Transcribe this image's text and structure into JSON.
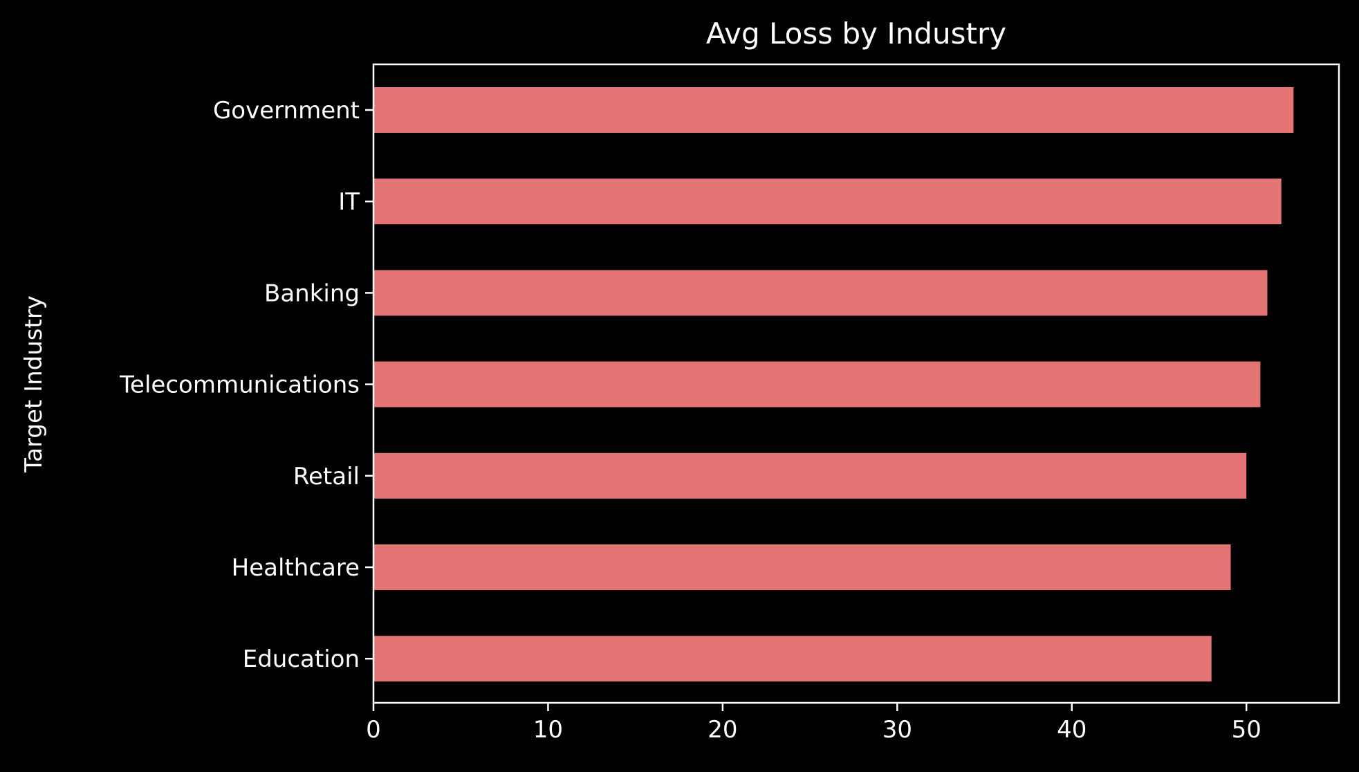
{
  "chart_data": {
    "type": "bar",
    "orientation": "horizontal",
    "title": "Avg Loss by Industry",
    "xlabel": "",
    "ylabel": "Target Industry",
    "categories": [
      "Government",
      "IT",
      "Banking",
      "Telecommunications",
      "Retail",
      "Healthcare",
      "Education"
    ],
    "values": [
      52.7,
      52.0,
      51.2,
      50.8,
      50.0,
      49.1,
      48.0
    ],
    "xlim": [
      0,
      55.3
    ],
    "xticks": [
      0,
      10,
      20,
      30,
      40,
      50
    ],
    "xtick_labels": [
      "0",
      "10",
      "20",
      "30",
      "40",
      "50"
    ],
    "grid": false,
    "legend": "none",
    "colors": {
      "background": "#000000",
      "bar": "#e57574",
      "axes": "#ffffff",
      "text": "#ffffff"
    }
  }
}
